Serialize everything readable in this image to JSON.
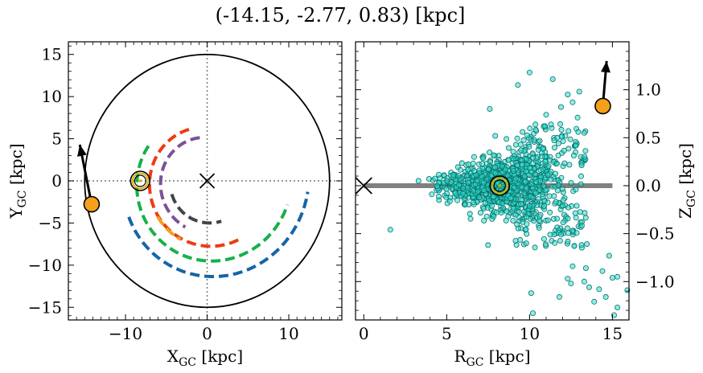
{
  "figure": {
    "title": "(-14.15, -2.77, 0.83) [kpc]"
  },
  "chart_data": [
    {
      "type": "scatter",
      "panel": "left",
      "xlabel_main": "X",
      "xlabel_sub": "GC",
      "xlabel_unit": " [kpc]",
      "ylabel_main": "Y",
      "ylabel_sub": "GC",
      "ylabel_unit": " [kpc]",
      "xlim": [
        -17,
        16.5
      ],
      "ylim": [
        -16.5,
        16.5
      ],
      "xticks": [
        -10,
        0,
        10
      ],
      "yticks": [
        -15,
        -10,
        -5,
        0,
        5,
        10,
        15
      ],
      "tick_labels_x": [
        "−10",
        "0",
        "10"
      ],
      "tick_labels_y": [
        "−15",
        "−10",
        "−5",
        "0",
        "5",
        "10",
        "15"
      ],
      "boundary_circle_radius": 15,
      "center_marker": [
        0,
        0
      ],
      "sun_position": [
        -8.2,
        0
      ],
      "object": {
        "x": -14.15,
        "y": -2.77,
        "arrow_to": [
          -15.6,
          4.3
        ],
        "color": "#f5a01a"
      },
      "arms": [
        {
          "color": "#1565a7",
          "radius": 10.5,
          "ang_start": 204,
          "ang_end": 355
        },
        {
          "color": "#17b04a",
          "radius": 8.3,
          "ang_start": 150,
          "ang_end": 345
        },
        {
          "color": "#ee3b11",
          "radius": 6.5,
          "ang_start": 110,
          "ang_end": 300
        },
        {
          "color": "#f5a01a",
          "radius": 7.4,
          "ang_start": 215,
          "ang_end": 245
        },
        {
          "color": "#7b5296",
          "radius": 5.2,
          "ang_start": 100,
          "ang_end": 245
        },
        {
          "color": "#444444",
          "radius": 4.6,
          "ang_start": 200,
          "ang_end": 290
        }
      ]
    },
    {
      "type": "scatter",
      "panel": "right",
      "xlabel_main": "R",
      "xlabel_sub": "GC",
      "xlabel_unit": " [kpc]",
      "ylabel_main": "Z",
      "ylabel_sub": "GC",
      "ylabel_unit": " [kpc]",
      "xlim": [
        -0.5,
        16
      ],
      "ylim": [
        -1.4,
        1.5
      ],
      "xticks": [
        0,
        5,
        10,
        15
      ],
      "yticks": [
        -1.0,
        -0.5,
        0.0,
        0.5,
        1.0
      ],
      "tick_labels_x": [
        "0",
        "5",
        "10",
        "15"
      ],
      "tick_labels_y": [
        "−1.0",
        "−0.5",
        "0.0",
        "0.5",
        "1.0"
      ],
      "disk_line": {
        "x": [
          0,
          15
        ],
        "y": 0,
        "color": "#808080"
      },
      "center_marker": [
        0,
        0
      ],
      "sun_position": [
        8.2,
        0
      ],
      "object": {
        "x": 14.42,
        "y": 0.83,
        "arrow_to": [
          14.65,
          1.3
        ],
        "color": "#f5a01a"
      },
      "stars_color": "#2ce0d0",
      "outlier_points": [
        [
          10.0,
          1.18
        ],
        [
          11.4,
          1.11
        ],
        [
          9.3,
          1.05
        ],
        [
          12.3,
          0.95
        ],
        [
          13.0,
          0.98
        ],
        [
          12.6,
          0.87
        ],
        [
          11.9,
          0.82
        ],
        [
          7.6,
          0.8
        ],
        [
          12.9,
          0.71
        ],
        [
          11.0,
          0.74
        ],
        [
          13.3,
          0.55
        ],
        [
          12.8,
          0.42
        ],
        [
          1.6,
          -0.46
        ],
        [
          7.5,
          -0.62
        ],
        [
          9.8,
          -0.6
        ],
        [
          11.9,
          -0.51
        ],
        [
          12.7,
          -0.63
        ],
        [
          12.6,
          -0.84
        ],
        [
          12.3,
          -0.97
        ],
        [
          13.4,
          -0.86
        ],
        [
          14.4,
          -0.89
        ],
        [
          14.8,
          -0.73
        ],
        [
          15.0,
          -0.96
        ],
        [
          14.6,
          -1.16
        ],
        [
          10.1,
          -1.12
        ],
        [
          11.8,
          -1.16
        ],
        [
          13.6,
          -1.06
        ],
        [
          14.2,
          -1.08
        ],
        [
          15.3,
          -0.95
        ],
        [
          15.9,
          -1.09
        ],
        [
          15.3,
          -1.27
        ],
        [
          15.1,
          -1.35
        ],
        [
          10.2,
          -1.33
        ],
        [
          13.3,
          -1.0
        ],
        [
          12.5,
          -1.02
        ],
        [
          13.9,
          -1.21
        ],
        [
          5.4,
          0.11
        ],
        [
          3.3,
          0.05
        ],
        [
          4.1,
          -0.09
        ],
        [
          6.1,
          -0.2
        ]
      ]
    }
  ]
}
